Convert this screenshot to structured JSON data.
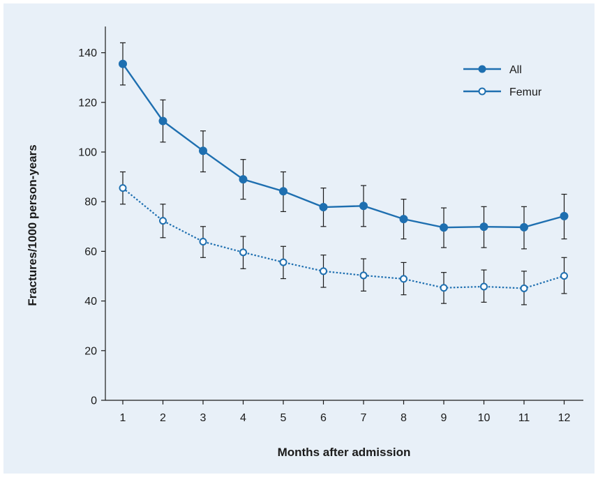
{
  "colors": {
    "background": "#e8f0f8",
    "series": "#1e6fb0",
    "axis": "#1a1a1a",
    "errorbar": "#1a1a1a"
  },
  "chart_data": {
    "type": "line",
    "title": "",
    "xlabel": "Months after admission",
    "ylabel": "Fractures/1000 person-years",
    "x": [
      1,
      2,
      3,
      4,
      5,
      6,
      7,
      8,
      9,
      10,
      11,
      12
    ],
    "xticks": [
      "1",
      "2",
      "3",
      "4",
      "5",
      "6",
      "7",
      "8",
      "9",
      "10",
      "11",
      "12"
    ],
    "yticks": [
      "0",
      "20",
      "40",
      "60",
      "80",
      "100",
      "120",
      "140"
    ],
    "ylim": [
      0,
      150
    ],
    "xlim": [
      0.5,
      12.5
    ],
    "grid": false,
    "legend_position": "top-right",
    "series": [
      {
        "name": "All",
        "marker": "filled-circle",
        "line_style": "solid",
        "values": [
          135.5,
          112.5,
          100.5,
          89.0,
          84.2,
          77.8,
          78.3,
          73.0,
          69.6,
          69.9,
          69.7,
          74.2
        ],
        "lower": [
          127.0,
          104.0,
          92.0,
          81.0,
          76.0,
          70.0,
          70.0,
          65.0,
          61.5,
          61.5,
          61.0,
          65.0
        ],
        "upper": [
          144.0,
          121.0,
          108.5,
          97.0,
          92.0,
          85.5,
          86.5,
          81.0,
          77.5,
          78.0,
          78.0,
          83.0
        ]
      },
      {
        "name": "Femur",
        "marker": "open-circle",
        "line_style": "dotted",
        "values": [
          85.5,
          72.3,
          63.9,
          59.6,
          55.6,
          52.0,
          50.3,
          48.9,
          45.3,
          45.8,
          45.1,
          50.1
        ],
        "lower": [
          79.0,
          65.5,
          57.5,
          53.0,
          49.0,
          45.5,
          44.0,
          42.5,
          39.0,
          39.5,
          38.5,
          43.0
        ],
        "upper": [
          92.0,
          79.0,
          70.0,
          66.0,
          62.0,
          58.5,
          57.0,
          55.5,
          51.5,
          52.5,
          52.0,
          57.5
        ]
      }
    ]
  }
}
